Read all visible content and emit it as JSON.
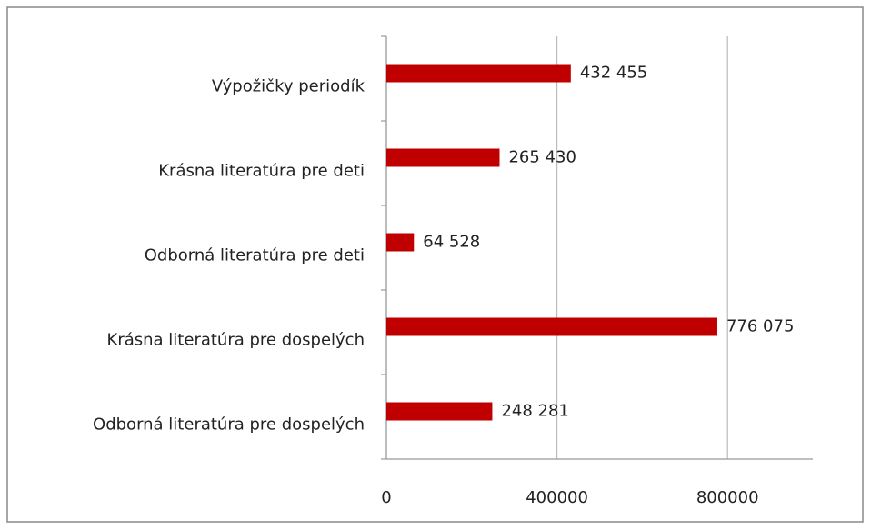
{
  "chart_data": {
    "type": "hbar",
    "categories": [
      "Výpožičky periodík",
      "Krásna literatúra pre deti",
      "Odborná literatúra pre deti",
      "Krásna literatúra pre dospelých",
      "Odborná literatúra pre dospelých"
    ],
    "values": [
      432455,
      265430,
      64528,
      776075,
      248281
    ],
    "value_labels": [
      "432 455",
      "265 430",
      "64 528",
      "776 075",
      "248 281"
    ],
    "color": "#c00000",
    "xlim": [
      0,
      1000000
    ],
    "xticks": [
      0,
      400000,
      800000
    ],
    "grid": true
  }
}
